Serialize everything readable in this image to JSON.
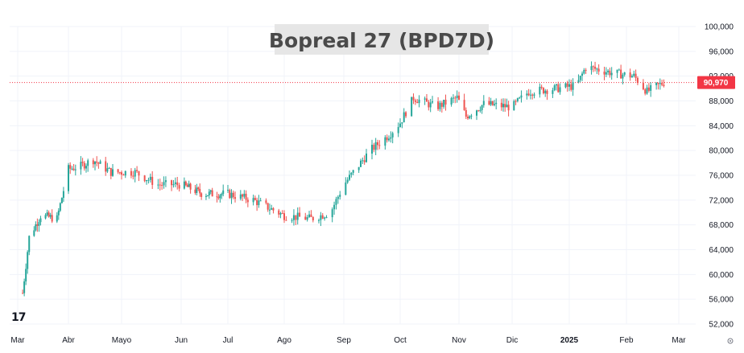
{
  "chart_data": {
    "type": "candlestick",
    "title": "Bopreal 27 (BPD7D)",
    "ylim": [
      52000,
      100000
    ],
    "y_ticks": [
      "100,000",
      "96,000",
      "92,000",
      "88,000",
      "84,000",
      "80,000",
      "76,000",
      "72,000",
      "68,000",
      "64,000",
      "60,000",
      "56,000",
      "52,000"
    ],
    "x_ticks": [
      {
        "label": "Mar",
        "date": "2024-03-01",
        "bold": false
      },
      {
        "label": "Abr",
        "date": "2024-04-01",
        "bold": false
      },
      {
        "label": "Mayo",
        "date": "2024-05-01",
        "bold": false
      },
      {
        "label": "Jun",
        "date": "2024-06-01",
        "bold": false
      },
      {
        "label": "Jul",
        "date": "2024-07-01",
        "bold": false
      },
      {
        "label": "Ago",
        "date": "2024-08-01",
        "bold": false
      },
      {
        "label": "Sep",
        "date": "2024-09-01",
        "bold": false
      },
      {
        "label": "Oct",
        "date": "2024-10-01",
        "bold": false
      },
      {
        "label": "Nov",
        "date": "2024-11-01",
        "bold": false
      },
      {
        "label": "Dic",
        "date": "2024-12-01",
        "bold": false
      },
      {
        "label": "2025",
        "date": "2025-01-01",
        "bold": true
      },
      {
        "label": "Feb",
        "date": "2025-02-01",
        "bold": false
      },
      {
        "label": "Mar",
        "date": "2025-03-01",
        "bold": false
      }
    ],
    "last_price": 90970,
    "last_price_label": "90,970",
    "start_date": "2024-03-04",
    "end_date": "2025-02-21",
    "trend": [
      {
        "date": "2024-03-04",
        "price": 57000
      },
      {
        "date": "2024-03-08",
        "price": 66000
      },
      {
        "date": "2024-03-15",
        "price": 69500
      },
      {
        "date": "2024-03-25",
        "price": 69000
      },
      {
        "date": "2024-04-01",
        "price": 77000
      },
      {
        "date": "2024-04-08",
        "price": 77500
      },
      {
        "date": "2024-04-15",
        "price": 78500
      },
      {
        "date": "2024-04-25",
        "price": 76500
      },
      {
        "date": "2024-05-08",
        "price": 76500
      },
      {
        "date": "2024-05-20",
        "price": 74500
      },
      {
        "date": "2024-06-01",
        "price": 74500
      },
      {
        "date": "2024-06-15",
        "price": 73000
      },
      {
        "date": "2024-07-01",
        "price": 73000
      },
      {
        "date": "2024-07-15",
        "price": 72000
      },
      {
        "date": "2024-08-01",
        "price": 69500
      },
      {
        "date": "2024-08-15",
        "price": 69000
      },
      {
        "date": "2024-08-25",
        "price": 70000
      },
      {
        "date": "2024-09-01",
        "price": 74500
      },
      {
        "date": "2024-09-15",
        "price": 80000
      },
      {
        "date": "2024-09-25",
        "price": 82500
      },
      {
        "date": "2024-10-01",
        "price": 84500
      },
      {
        "date": "2024-10-08",
        "price": 88500
      },
      {
        "date": "2024-10-20",
        "price": 87000
      },
      {
        "date": "2024-10-31",
        "price": 88500
      },
      {
        "date": "2024-11-05",
        "price": 85500
      },
      {
        "date": "2024-11-15",
        "price": 87500
      },
      {
        "date": "2024-12-01",
        "price": 87000
      },
      {
        "date": "2024-12-10",
        "price": 89500
      },
      {
        "date": "2024-12-25",
        "price": 90000
      },
      {
        "date": "2025-01-05",
        "price": 90500
      },
      {
        "date": "2025-01-10",
        "price": 93500
      },
      {
        "date": "2025-01-25",
        "price": 92500
      },
      {
        "date": "2025-02-05",
        "price": 92000
      },
      {
        "date": "2025-02-12",
        "price": 89500
      },
      {
        "date": "2025-02-21",
        "price": 90970
      }
    ]
  },
  "brand_mark": "17",
  "colors": {
    "up": "#26a69a",
    "down": "#ef5350",
    "grid": "#f0f3fa",
    "price_tag": "#f23645"
  }
}
